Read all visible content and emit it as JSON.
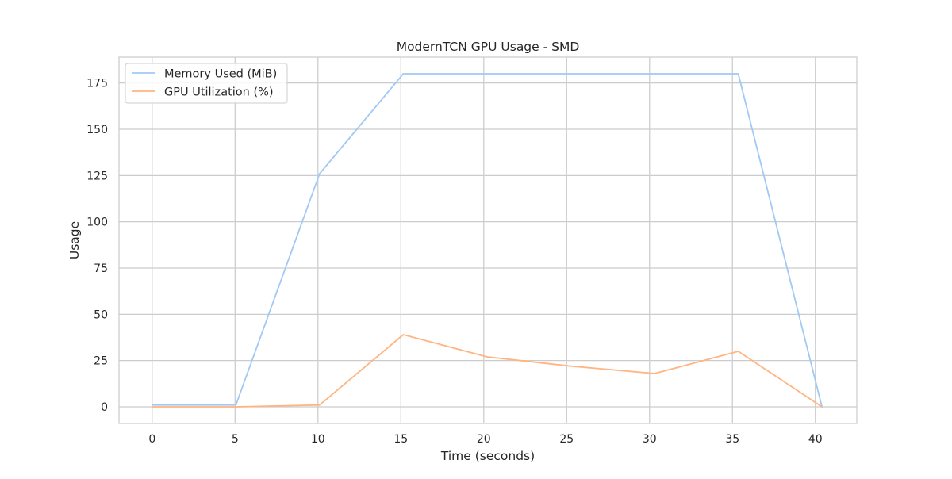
{
  "chart_data": {
    "type": "line",
    "title": "ModernTCN GPU Usage - SMD",
    "xlabel": "Time (seconds)",
    "ylabel": "Usage",
    "xlim": [
      -2.0,
      42.5
    ],
    "ylim": [
      -9.0,
      189.0
    ],
    "xticks": [
      0,
      5,
      10,
      15,
      20,
      25,
      30,
      35,
      40
    ],
    "yticks": [
      0,
      25,
      50,
      75,
      100,
      125,
      150,
      175
    ],
    "grid": true,
    "legend_position": "top-left",
    "series": [
      {
        "name": "Memory Used (MiB)",
        "color": "#a1c9f4",
        "x": [
          0,
          5.05,
          10.1,
          15.15,
          20.2,
          25.25,
          30.3,
          35.35,
          40.4
        ],
        "y": [
          1,
          1,
          126,
          180,
          180,
          180,
          180,
          180,
          0
        ]
      },
      {
        "name": "GPU Utilization (%)",
        "color": "#ffb482",
        "x": [
          0,
          5.05,
          10.1,
          15.15,
          20.2,
          25.25,
          30.3,
          35.35,
          40.4
        ],
        "y": [
          0,
          0,
          1,
          39,
          27,
          22,
          18,
          30,
          0
        ]
      }
    ]
  }
}
